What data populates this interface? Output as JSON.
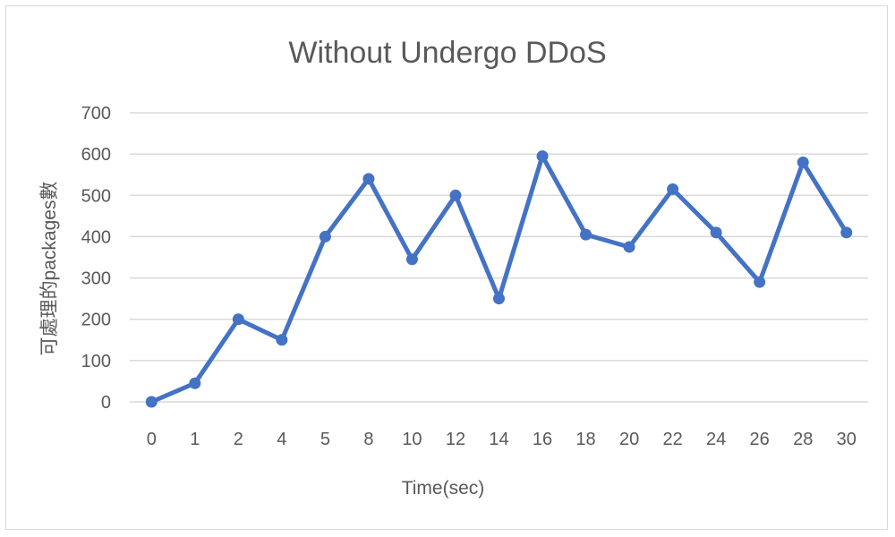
{
  "chart_data": {
    "type": "line",
    "title": "Without Undergo DDoS",
    "xlabel": "Time(sec)",
    "ylabel": "可處理的packages數",
    "categories": [
      "0",
      "1",
      "2",
      "4",
      "5",
      "8",
      "10",
      "12",
      "14",
      "16",
      "18",
      "20",
      "22",
      "24",
      "26",
      "28",
      "30"
    ],
    "series": [
      {
        "values": [
          0,
          45,
          200,
          150,
          400,
          540,
          345,
          500,
          250,
          595,
          405,
          375,
          515,
          410,
          290,
          580,
          410
        ],
        "color": "#4472c4"
      }
    ],
    "ylim": [
      0,
      700
    ],
    "yticks": [
      0,
      100,
      200,
      300,
      400,
      500,
      600,
      700
    ],
    "grid": true,
    "legend": "none"
  }
}
